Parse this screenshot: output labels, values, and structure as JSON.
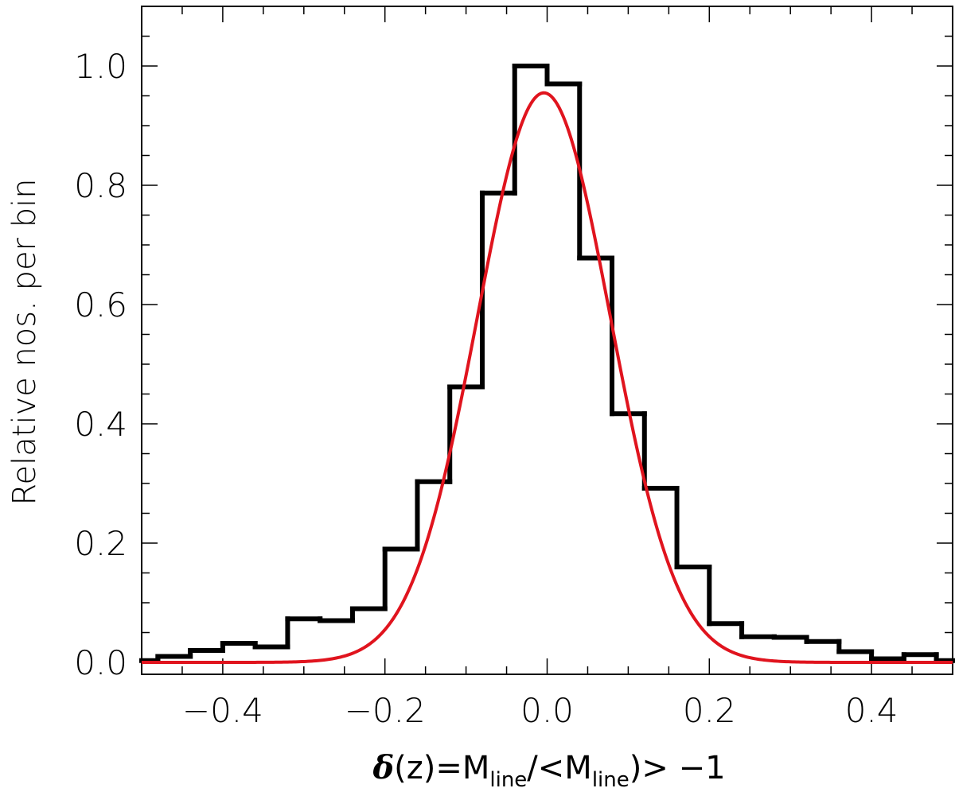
{
  "chart_data": {
    "type": "histogram",
    "title": "",
    "xlabel": {
      "symbol": "δ",
      "arg": "(z)",
      "eq": "=M",
      "sub1": "line",
      "mid": "/<M",
      "sub2": "line",
      "tail": ")>  −1"
    },
    "ylabel": "Relative nos. per bin",
    "xlim": [
      -0.5,
      0.5
    ],
    "ylim": [
      -0.02,
      1.1
    ],
    "xticks": [
      -0.4,
      -0.2,
      0.0,
      0.2,
      0.4
    ],
    "xtick_labels": [
      "−0.4",
      "−0.2",
      "0.0",
      "0.2",
      "0.4"
    ],
    "yticks": [
      0.0,
      0.2,
      0.4,
      0.6,
      0.8,
      1.0
    ],
    "ytick_labels": [
      "0.0",
      "0.2",
      "0.4",
      "0.6",
      "0.8",
      "1.0"
    ],
    "series": [
      {
        "kind": "step-histogram",
        "color": "#000000",
        "bin_edges": [
          -0.5,
          -0.48,
          -0.44,
          -0.4,
          -0.36,
          -0.32,
          -0.28,
          -0.24,
          -0.2,
          -0.16,
          -0.12,
          -0.08,
          -0.04,
          0.0,
          0.04,
          0.08,
          0.12,
          0.16,
          0.2,
          0.24,
          0.28,
          0.32,
          0.36,
          0.4,
          0.44,
          0.48,
          0.5
        ],
        "values": [
          0.003,
          0.01,
          0.02,
          0.032,
          0.026,
          0.073,
          0.07,
          0.09,
          0.19,
          0.303,
          0.462,
          0.787,
          1.0,
          0.97,
          0.678,
          0.417,
          0.292,
          0.16,
          0.065,
          0.043,
          0.042,
          0.035,
          0.018,
          0.006,
          0.013,
          0.003
        ]
      },
      {
        "kind": "gaussian-fit",
        "color": "#e0141e",
        "amplitude": 0.955,
        "mean": -0.004,
        "sigma": 0.082
      }
    ]
  }
}
